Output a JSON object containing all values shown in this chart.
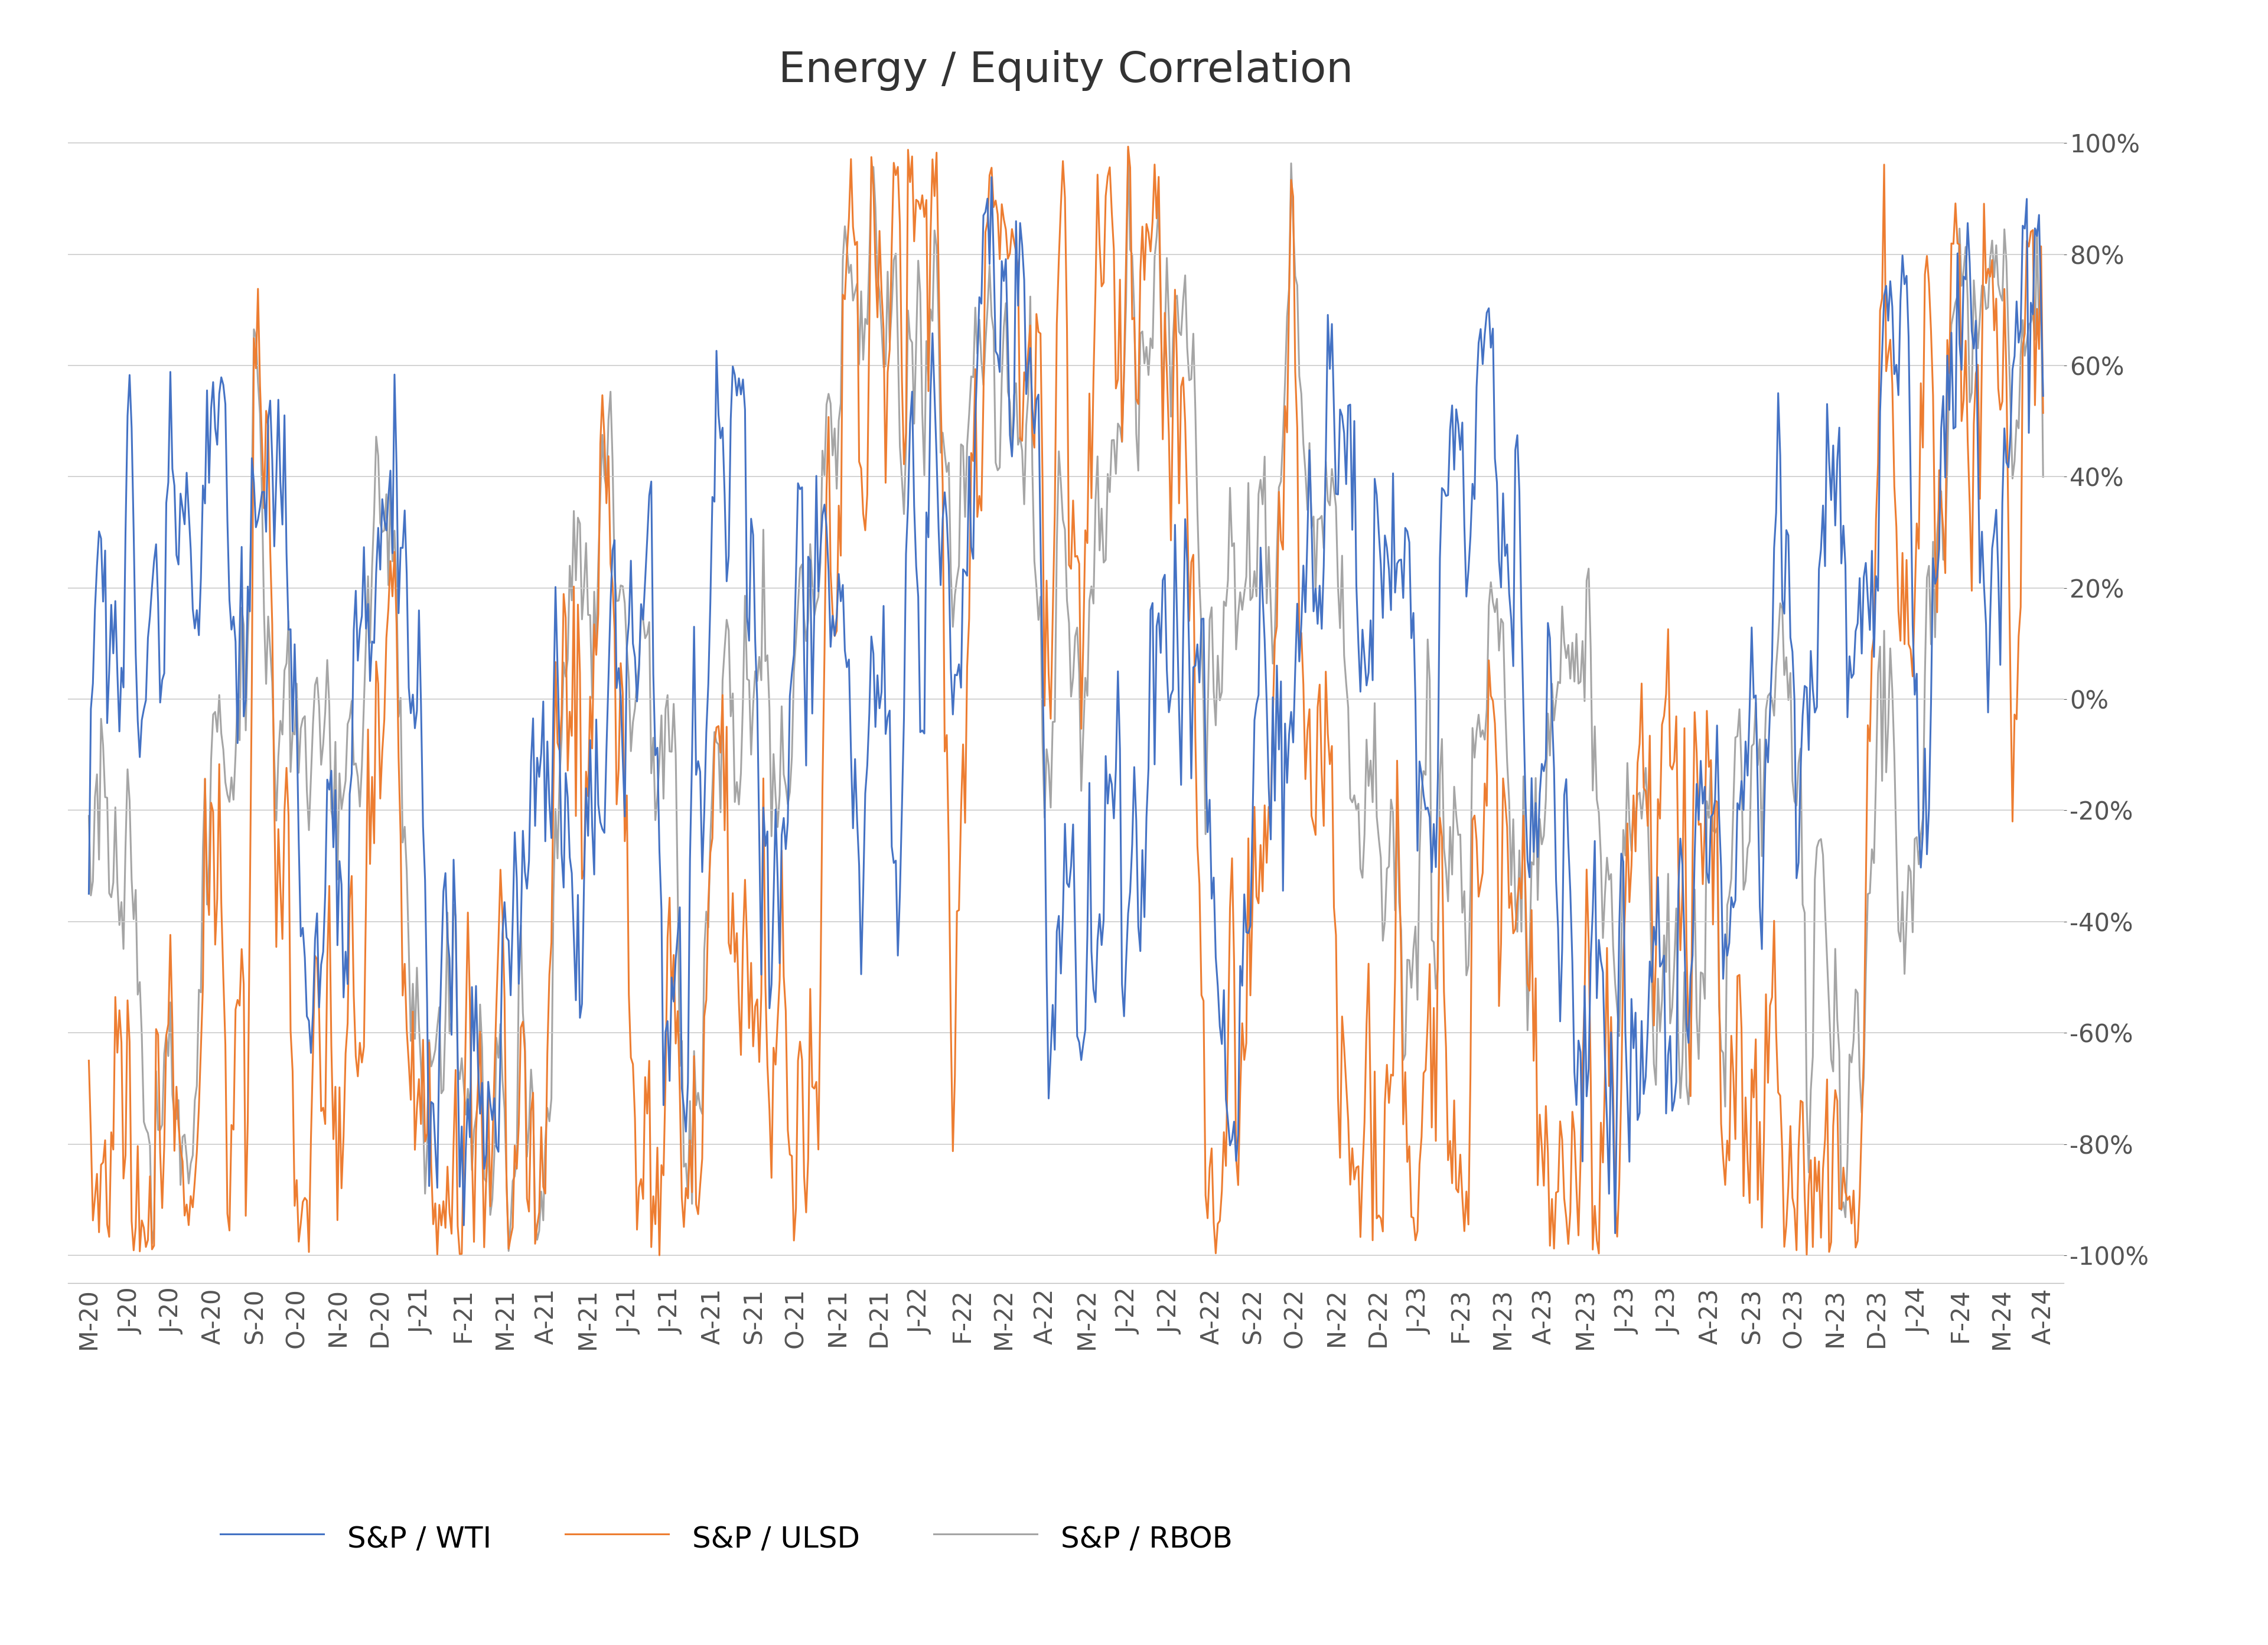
{
  "title": "Energy / Equity Correlation",
  "colors": {
    "wti": "#4472C4",
    "ulsd": "#ED7D31",
    "rbob": "#A5A5A5"
  },
  "legend_labels": [
    "S&P / WTI",
    "S&P / ULSD",
    "S&P / RBOB"
  ],
  "yticks": [
    -1.0,
    -0.8,
    -0.6,
    -0.4,
    -0.2,
    0.0,
    0.2,
    0.4,
    0.6,
    0.8,
    1.0
  ],
  "ylim": [
    -1.05,
    1.05
  ],
  "background_color": "#FFFFFF",
  "title_fontsize": 52,
  "legend_fontsize": 36,
  "tick_fontsize": 30,
  "x_labels": [
    "M-20",
    "J-20",
    "J-20",
    "A-20",
    "S-20",
    "O-20",
    "N-20",
    "D-20",
    "J-21",
    "F-21",
    "M-21",
    "A-21",
    "M-21",
    "J-21",
    "J-21",
    "A-21",
    "S-21",
    "O-21",
    "N-21",
    "D-21",
    "J-22",
    "F-22",
    "M-22",
    "A-22",
    "M-22",
    "J-22",
    "J-22",
    "A-22",
    "S-22",
    "O-22",
    "N-22",
    "D-22",
    "J-23",
    "F-23",
    "M-23",
    "A-23",
    "M-23",
    "J-23",
    "J-23",
    "A-23",
    "S-23",
    "O-23",
    "N-23",
    "D-23",
    "J-24",
    "F-24",
    "M-24",
    "A-24"
  ]
}
